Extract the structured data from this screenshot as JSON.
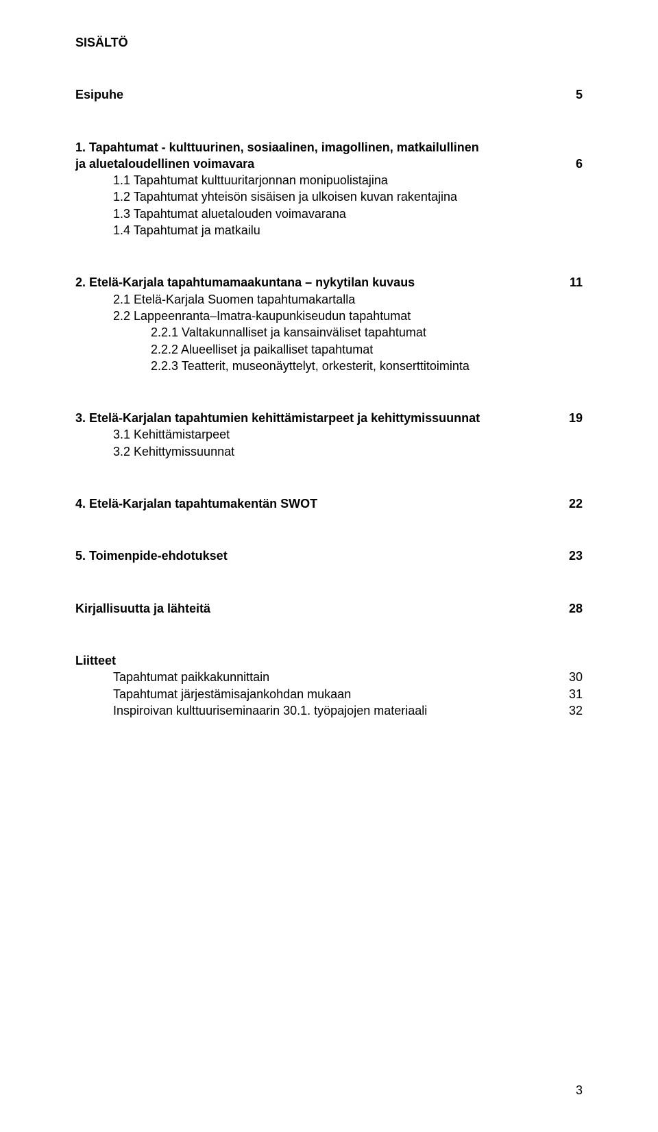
{
  "title": "SISÄLTÖ",
  "esipuhe": {
    "label": "Esipuhe",
    "page": "5"
  },
  "s1": {
    "heading_l1": "1. Tapahtumat - kulttuurinen, sosiaalinen, imagollinen, matkailullinen",
    "heading_l2": "ja aluetaloudellinen voimavara",
    "page": "6",
    "i1": "1.1 Tapahtumat kulttuuritarjonnan monipuolistajina",
    "i2": "1.2 Tapahtumat yhteisön sisäisen ja ulkoisen kuvan rakentajina",
    "i3": "1.3 Tapahtumat aluetalouden voimavarana",
    "i4": "1.4 Tapahtumat ja matkailu"
  },
  "s2": {
    "heading": "2. Etelä-Karjala tapahtumamaakuntana – nykytilan kuvaus",
    "page": "11",
    "i1": "2.1 Etelä-Karjala Suomen tapahtumakartalla",
    "i2": "2.2 Lappeenranta–Imatra-kaupunkiseudun tapahtumat",
    "i2_1": "2.2.1   Valtakunnalliset ja kansainväliset tapahtumat",
    "i2_2": "2.2.2   Alueelliset ja paikalliset tapahtumat",
    "i2_3": "2.2.3   Teatterit, museonäyttelyt, orkesterit, konserttitoiminta"
  },
  "s3": {
    "heading": "3. Etelä-Karjalan tapahtumien kehittämistarpeet ja kehittymissuunnat",
    "page": "19",
    "i1": "3.1 Kehittämistarpeet",
    "i2": "3.2 Kehittymissuunnat"
  },
  "s4": {
    "heading": "4. Etelä-Karjalan tapahtumakentän SWOT",
    "page": "22"
  },
  "s5": {
    "heading": "5. Toimenpide-ehdotukset",
    "page": "23"
  },
  "kirj": {
    "heading": "Kirjallisuutta ja lähteitä",
    "page": "28"
  },
  "liitteet": {
    "heading": "Liitteet",
    "r1": {
      "label": "Tapahtumat paikkakunnittain",
      "page": "30"
    },
    "r2": {
      "label": "Tapahtumat järjestämisajankohdan mukaan",
      "page": "31"
    },
    "r3": {
      "label": "Inspiroivan kulttuuriseminaarin 30.1. työpajojen materiaali",
      "page": "32"
    }
  },
  "footer_page": "3"
}
